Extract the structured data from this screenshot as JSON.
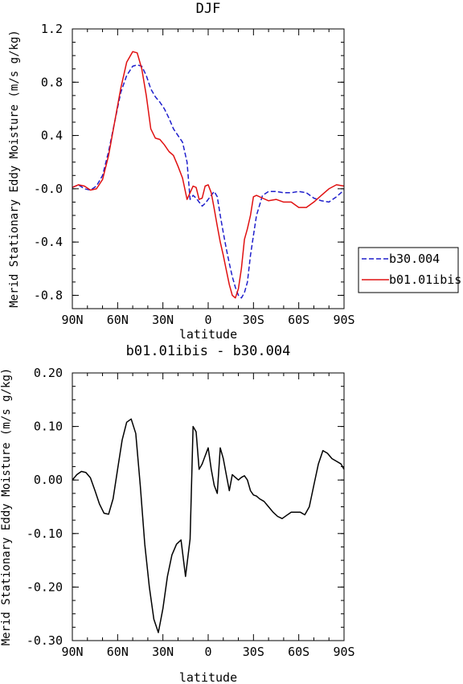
{
  "chart_data": [
    {
      "type": "line",
      "title": "DJF",
      "xlabel": "latitude",
      "ylabel": "Merid Stationary Eddy Moisture (m/s g/kg)",
      "xlim": [
        90,
        -90
      ],
      "ylim": [
        -0.9,
        1.2
      ],
      "xticks": [
        90,
        60,
        30,
        0,
        -30,
        -60,
        -90
      ],
      "xtick_labels": [
        "90N",
        "60N",
        "30N",
        "0",
        "30S",
        "60S",
        "90S"
      ],
      "yticks": [
        1.2,
        0.8,
        0.4,
        0.0,
        -0.4,
        -0.8
      ],
      "ytick_labels": [
        "1.2",
        "0.8",
        "0.4",
        "-0.0",
        "-0.4",
        "-0.8"
      ],
      "legend": "right",
      "series": [
        {
          "name": "b30.004",
          "color": "#1f1fcc",
          "dash": "dashed",
          "x": [
            90,
            86,
            82,
            78,
            74,
            70,
            66,
            62,
            58,
            54,
            50,
            47,
            44,
            41,
            38,
            35,
            32,
            29,
            26,
            23,
            20,
            17,
            14,
            12,
            10,
            8,
            6,
            4,
            2,
            0,
            -2,
            -4,
            -6,
            -8,
            -10,
            -12,
            -14,
            -16,
            -18,
            -20,
            -22,
            -24,
            -26,
            -28,
            -30,
            -32,
            -36,
            -40,
            -45,
            -50,
            -55,
            -60,
            -65,
            -70,
            -75,
            -80,
            -85,
            -90
          ],
          "y": [
            0.01,
            0.03,
            0.0,
            -0.01,
            0.02,
            0.1,
            0.28,
            0.5,
            0.72,
            0.85,
            0.92,
            0.93,
            0.92,
            0.85,
            0.75,
            0.69,
            0.65,
            0.6,
            0.53,
            0.45,
            0.4,
            0.35,
            0.2,
            -0.08,
            -0.05,
            -0.07,
            -0.1,
            -0.13,
            -0.11,
            -0.08,
            -0.05,
            -0.02,
            -0.06,
            -0.2,
            -0.33,
            -0.45,
            -0.56,
            -0.66,
            -0.74,
            -0.8,
            -0.82,
            -0.78,
            -0.7,
            -0.5,
            -0.35,
            -0.2,
            -0.05,
            -0.02,
            -0.02,
            -0.03,
            -0.03,
            -0.02,
            -0.03,
            -0.07,
            -0.09,
            -0.1,
            -0.06,
            -0.01
          ]
        },
        {
          "name": "b01.01ibis",
          "color": "#e01010",
          "dash": "solid",
          "x": [
            90,
            86,
            82,
            78,
            74,
            70,
            66,
            62,
            58,
            54,
            50,
            47,
            44,
            41,
            38,
            35,
            32,
            29,
            26,
            23,
            20,
            17,
            14,
            12,
            10,
            8,
            6,
            4,
            2,
            0,
            -2,
            -4,
            -6,
            -8,
            -10,
            -12,
            -14,
            -16,
            -18,
            -20,
            -22,
            -24,
            -26,
            -28,
            -30,
            -32,
            -36,
            -40,
            -45,
            -50,
            -55,
            -60,
            -65,
            -70,
            -75,
            -80,
            -85,
            -90
          ],
          "y": [
            0.01,
            0.03,
            0.02,
            -0.01,
            0.0,
            0.07,
            0.25,
            0.5,
            0.75,
            0.95,
            1.03,
            1.02,
            0.9,
            0.7,
            0.45,
            0.38,
            0.37,
            0.33,
            0.28,
            0.25,
            0.17,
            0.08,
            -0.08,
            -0.03,
            0.02,
            0.01,
            -0.08,
            -0.07,
            0.02,
            0.03,
            -0.03,
            -0.15,
            -0.28,
            -0.4,
            -0.5,
            -0.61,
            -0.72,
            -0.8,
            -0.82,
            -0.75,
            -0.6,
            -0.38,
            -0.3,
            -0.2,
            -0.06,
            -0.05,
            -0.07,
            -0.09,
            -0.08,
            -0.1,
            -0.1,
            -0.14,
            -0.14,
            -0.1,
            -0.05,
            0.0,
            0.03,
            0.02
          ]
        }
      ]
    },
    {
      "type": "line",
      "title": "b01.01ibis - b30.004",
      "xlabel": "latitude",
      "ylabel": "Merid Stationary Eddy Moisture (m/s g/kg)",
      "xlim": [
        90,
        -90
      ],
      "ylim": [
        -0.3,
        0.2
      ],
      "xticks": [
        90,
        60,
        30,
        0,
        -30,
        -60,
        -90
      ],
      "xtick_labels": [
        "90N",
        "60N",
        "30N",
        "0",
        "30S",
        "60S",
        "90S"
      ],
      "yticks": [
        0.2,
        0.1,
        0.0,
        -0.1,
        -0.2,
        -0.3
      ],
      "ytick_labels": [
        "0.20",
        "0.10",
        "0.00",
        "-0.10",
        "-0.20",
        "-0.30"
      ],
      "series": [
        {
          "color": "#000000",
          "dash": "solid",
          "x": [
            90,
            87,
            84,
            81,
            78,
            75,
            72,
            69,
            66,
            63,
            60,
            57,
            54,
            51,
            48,
            45,
            42,
            39,
            36,
            33,
            30,
            27,
            24,
            21,
            18,
            15,
            12,
            10,
            8,
            6,
            4,
            2,
            0,
            -2,
            -4,
            -6,
            -8,
            -10,
            -12,
            -14,
            -16,
            -18,
            -20,
            -22,
            -24,
            -26,
            -28,
            -30,
            -32,
            -34,
            -37,
            -40,
            -43,
            -46,
            -49,
            -52,
            -55,
            -58,
            -61,
            -64,
            -67,
            -70,
            -73,
            -76,
            -79,
            -82,
            -85,
            -88,
            -90
          ],
          "y": [
            0.0,
            0.01,
            0.016,
            0.014,
            0.004,
            -0.02,
            -0.045,
            -0.062,
            -0.064,
            -0.035,
            0.02,
            0.075,
            0.108,
            0.114,
            0.087,
            -0.01,
            -0.12,
            -0.2,
            -0.26,
            -0.285,
            -0.24,
            -0.18,
            -0.14,
            -0.12,
            -0.112,
            -0.18,
            -0.11,
            0.1,
            0.09,
            0.02,
            0.03,
            0.045,
            0.06,
            0.02,
            -0.01,
            -0.025,
            0.06,
            0.04,
            0.01,
            -0.02,
            0.01,
            0.005,
            0.0,
            0.005,
            0.008,
            0.0,
            -0.02,
            -0.028,
            -0.03,
            -0.035,
            -0.04,
            -0.05,
            -0.06,
            -0.068,
            -0.072,
            -0.066,
            -0.06,
            -0.06,
            -0.06,
            -0.065,
            -0.05,
            -0.01,
            0.03,
            0.055,
            0.05,
            0.04,
            0.035,
            0.03,
            0.02
          ]
        }
      ]
    }
  ]
}
